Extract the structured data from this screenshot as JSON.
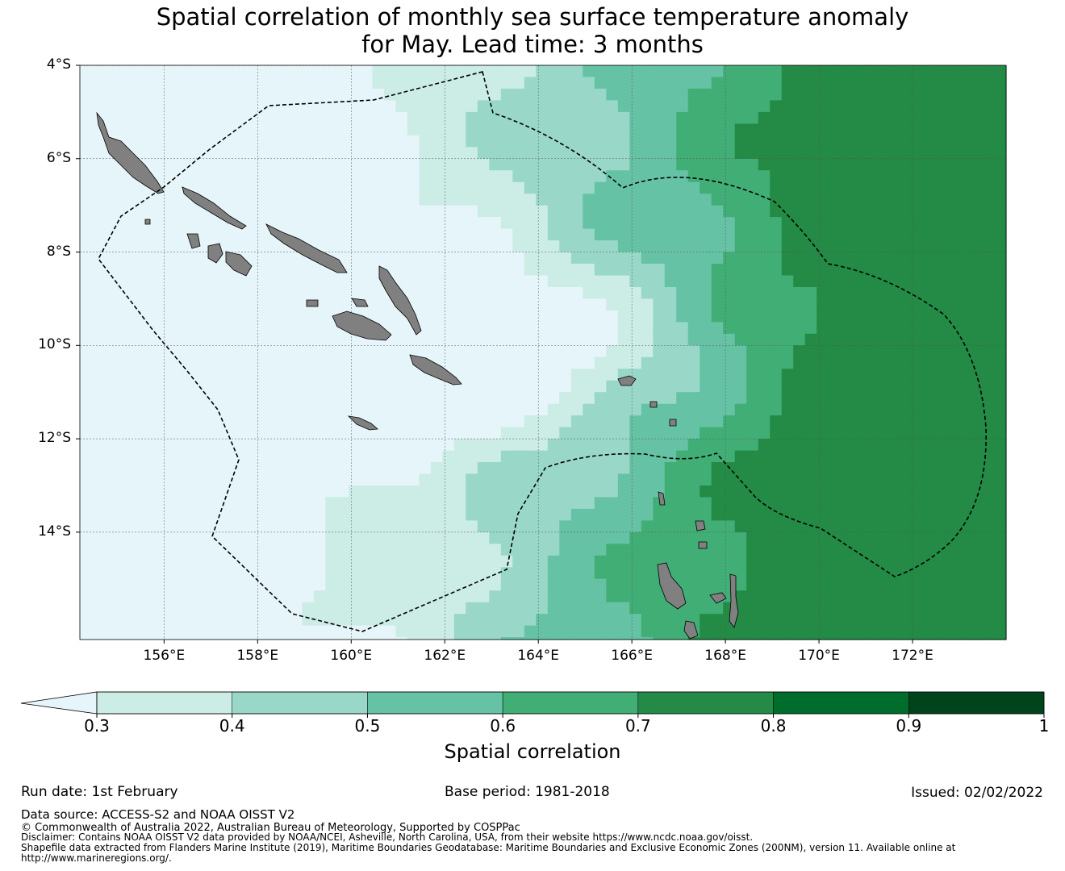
{
  "title": {
    "line1": "Spatial correlation of monthly sea surface temperature anomaly",
    "line2": "for May. Lead time: 3 months"
  },
  "map": {
    "lat_ticks": [
      "4°S",
      "6°S",
      "8°S",
      "10°S",
      "12°S",
      "14°S"
    ],
    "lon_ticks": [
      "156°E",
      "158°E",
      "160°E",
      "162°E",
      "164°E",
      "166°E",
      "168°E",
      "170°E",
      "172°E"
    ],
    "extent": {
      "lon_min": 154.2,
      "lon_max": 174.0,
      "lat_min": -16.3,
      "lat_max": -4.0
    },
    "land_color": "#808080",
    "eez_line": "dashed black"
  },
  "chart_data": {
    "type": "heatmap",
    "title": "Spatial correlation of monthly sea surface temperature anomaly for May. Lead time: 3 months",
    "xlabel": "",
    "ylabel": "",
    "x_ticks": [
      "156°E",
      "158°E",
      "160°E",
      "162°E",
      "164°E",
      "166°E",
      "168°E",
      "170°E",
      "172°E"
    ],
    "y_ticks": [
      "4°S",
      "6°S",
      "8°S",
      "10°S",
      "12°S",
      "14°S"
    ],
    "color_levels": [
      0.3,
      0.4,
      0.5,
      0.6,
      0.7,
      0.8,
      0.9,
      1
    ],
    "colors": [
      "#e5f5f9",
      "#ccece6",
      "#99d8c9",
      "#66c2a4",
      "#41ae76",
      "#238b45",
      "#006d2c",
      "#00441b"
    ],
    "grid": true
  },
  "colorbar": {
    "labels": [
      "0.3",
      "0.4",
      "0.5",
      "0.6",
      "0.7",
      "0.8",
      "0.9",
      "1"
    ],
    "title": "Spatial correlation"
  },
  "footer": {
    "run_date": "Run date: 1st February",
    "base_period": "Base period: 1981-2018",
    "issued": "Issued: 02/02/2022",
    "data_source": "Data source: ACCESS-S2 and NOAA OISST V2",
    "copyright": "© Commonwealth of Australia 2022, Australian Bureau of Meteorology, Supported by COSPPac",
    "disclaimer": "Disclaimer: Contains NOAA OISST V2 data provided by NOAA/NCEI, Asheville, North Carolina, USA, from their website https://www.ncdc.noaa.gov/oisst.",
    "shapefile": "Shapefile data extracted from Flanders Marine Institute (2019), Maritime Boundaries Geodatabase: Maritime Boundaries and Exclusive Economic Zones (200NM), version 11. Available online at",
    "shapefile_url": "http://www.marineregions.org/."
  }
}
